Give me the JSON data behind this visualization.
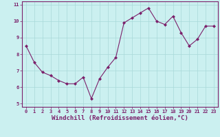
{
  "x": [
    0,
    1,
    2,
    3,
    4,
    5,
    6,
    7,
    8,
    9,
    10,
    11,
    12,
    13,
    14,
    15,
    16,
    17,
    18,
    19,
    20,
    21,
    22,
    23
  ],
  "y": [
    8.5,
    7.5,
    6.9,
    6.7,
    6.4,
    6.2,
    6.2,
    6.6,
    5.3,
    6.5,
    7.2,
    7.8,
    9.9,
    10.2,
    10.5,
    10.8,
    10.0,
    9.8,
    10.3,
    9.3,
    8.5,
    8.9,
    9.7,
    9.7
  ],
  "line_color": "#7B1F6A",
  "marker": "D",
  "marker_size": 2,
  "bg_color": "#CBF0F0",
  "grid_color": "#A8D8D8",
  "xlabel": "Windchill (Refroidissement éolien,°C)",
  "xlim": [
    -0.5,
    23.5
  ],
  "ylim": [
    4.8,
    11.2
  ],
  "yticks": [
    5,
    6,
    7,
    8,
    9,
    10,
    11
  ],
  "xticks": [
    0,
    1,
    2,
    3,
    4,
    5,
    6,
    7,
    8,
    9,
    10,
    11,
    12,
    13,
    14,
    15,
    16,
    17,
    18,
    19,
    20,
    21,
    22,
    23
  ],
  "tick_color": "#7B1F6A",
  "tick_fontsize": 5.0,
  "xlabel_fontsize": 6.5,
  "axis_color": "#7B1F6A",
  "spine_color": "#7B1F6A"
}
